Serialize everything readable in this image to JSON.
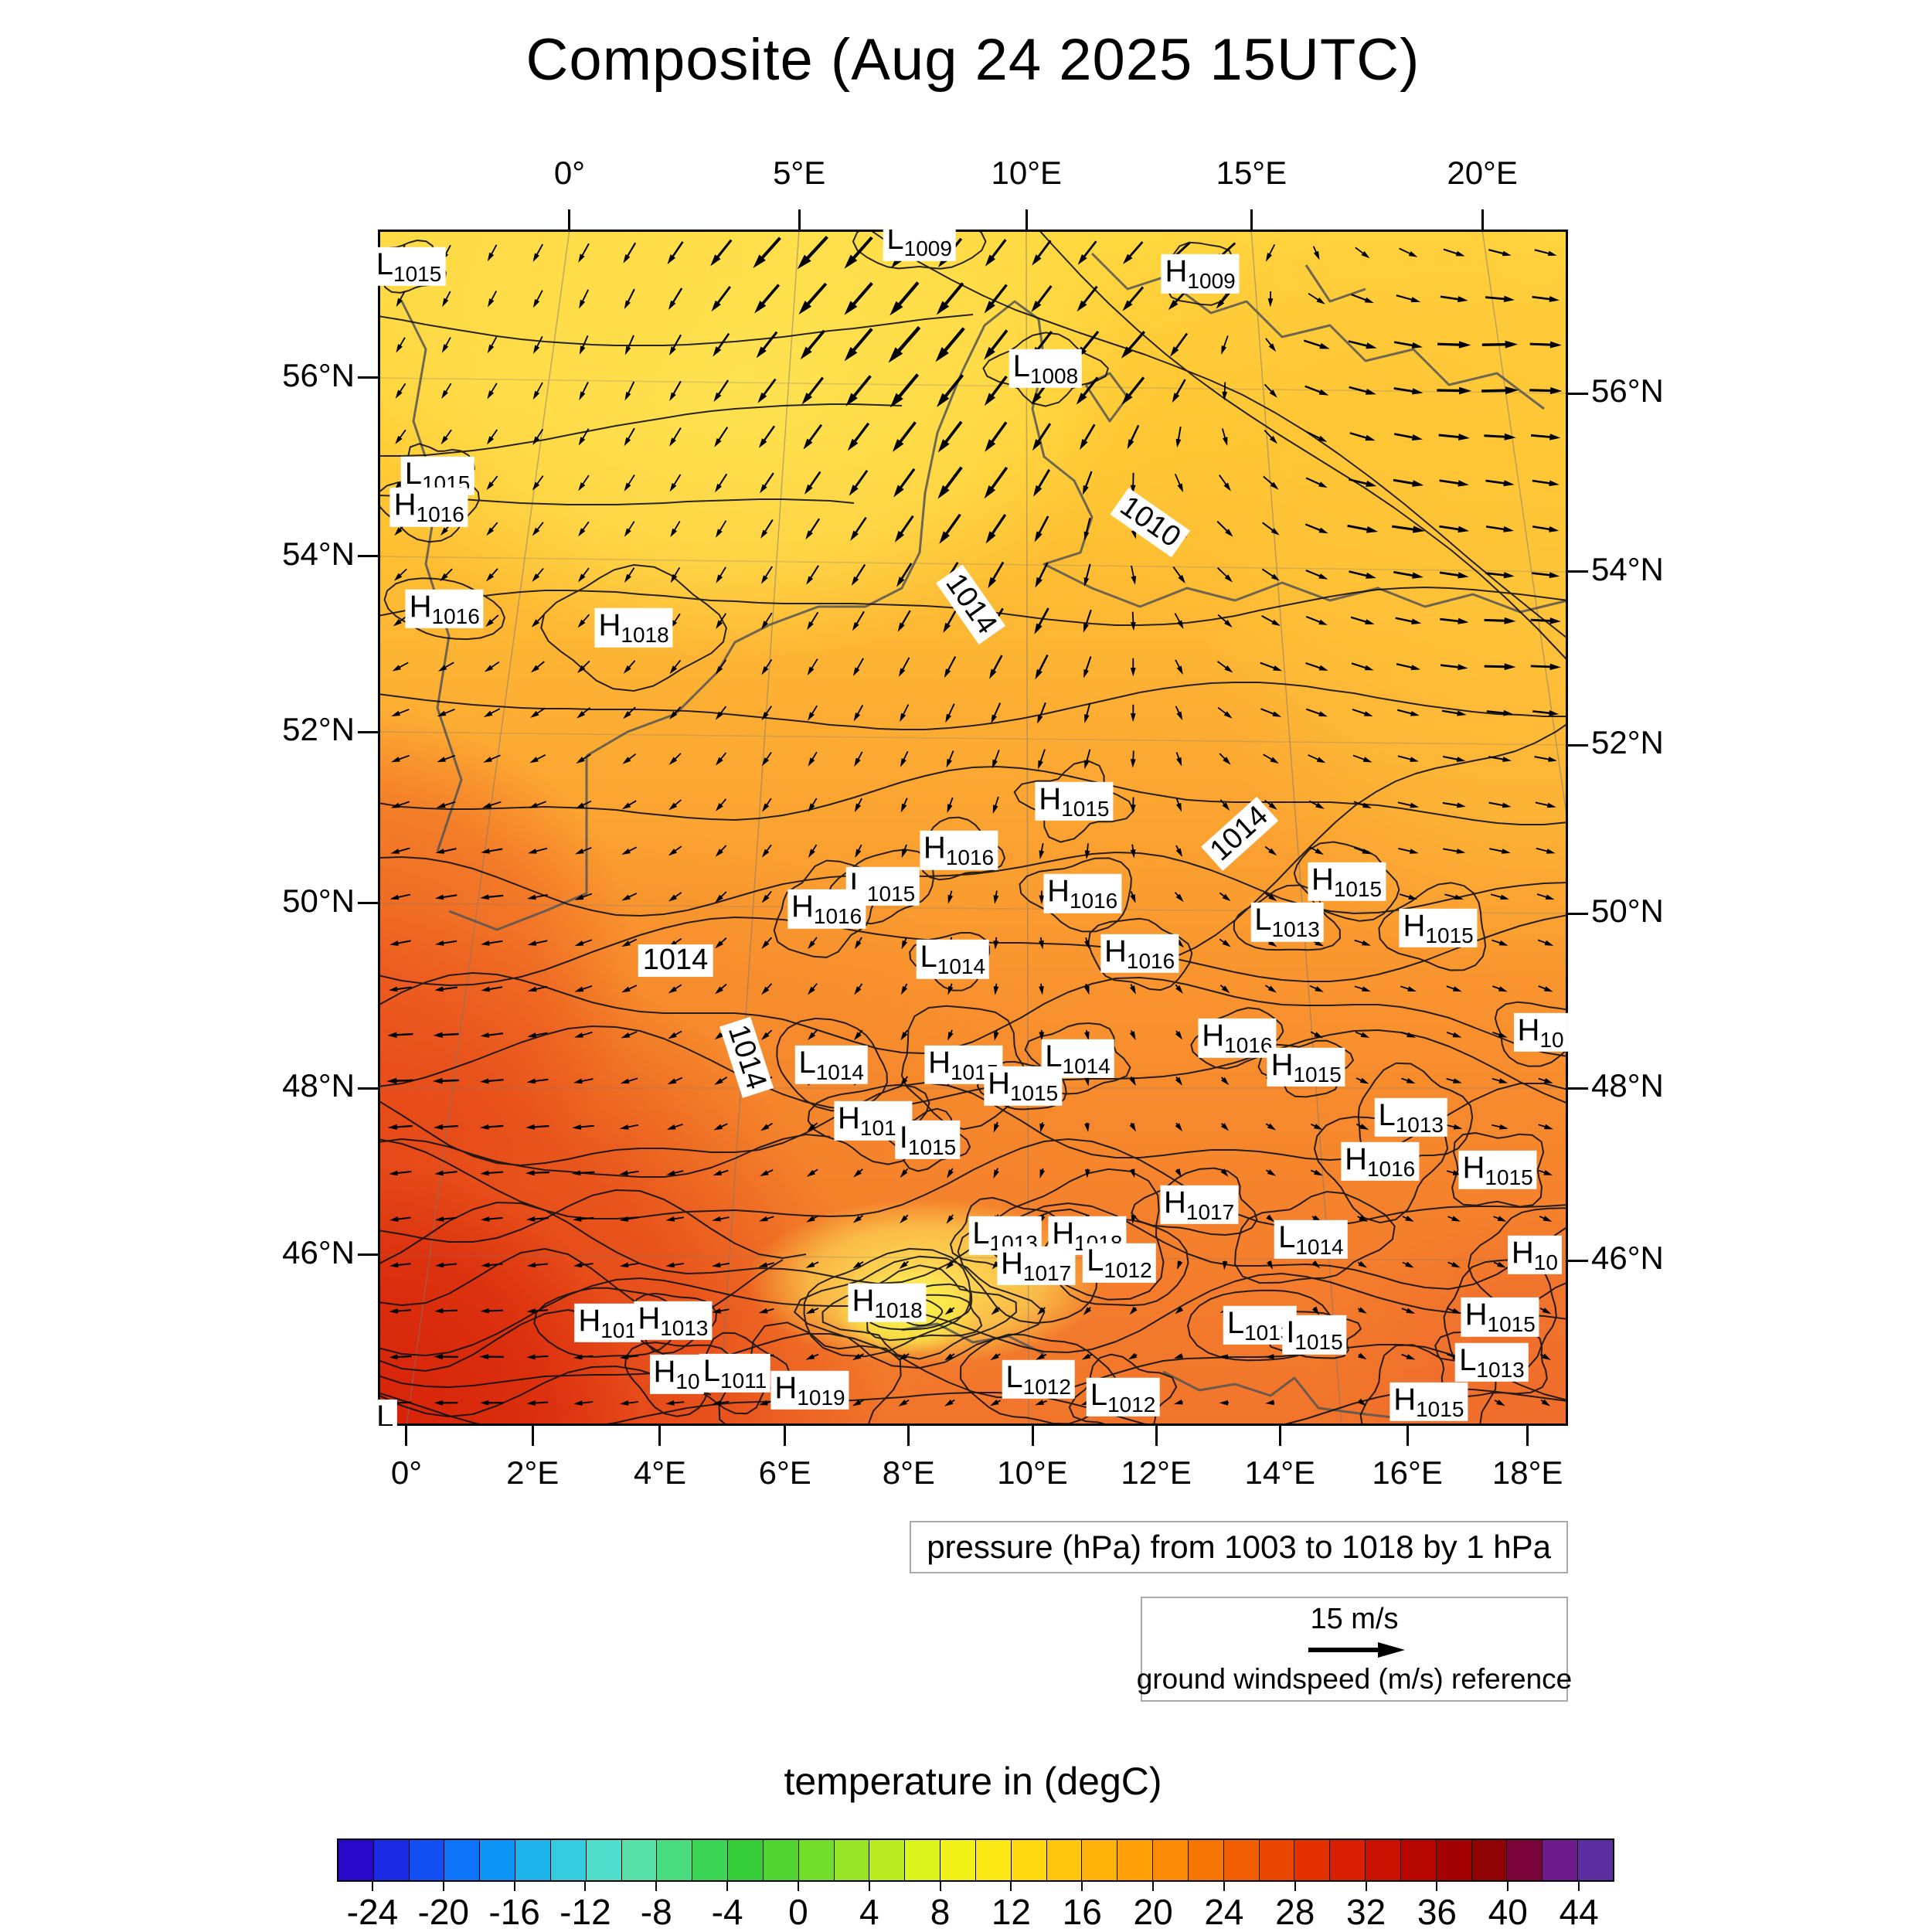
{
  "title": "Composite (Aug 24 2025 15UTC)",
  "caption": "pressure (hPa) from 1003 to 1018 by 1 hPa",
  "wind_legend": {
    "speed_label": "15 m/s",
    "reference_label": "ground windspeed (m/s) reference"
  },
  "colorbar": {
    "title": "temperature in (degC)",
    "min": -26,
    "max": 46,
    "tick_values": [
      -24,
      -20,
      -16,
      -12,
      -8,
      -4,
      0,
      4,
      8,
      12,
      16,
      20,
      24,
      28,
      32,
      36,
      40,
      44
    ],
    "colors": [
      "#2A06C9",
      "#1B2BE3",
      "#134FF2",
      "#0C73F8",
      "#0E94F5",
      "#1FB3EC",
      "#35CCE0",
      "#50DECC",
      "#57E0A8",
      "#4ADB7E",
      "#3BD455",
      "#37CC39",
      "#51D432",
      "#73DD2C",
      "#97E526",
      "#BBEC21",
      "#DCF31C",
      "#F2F219",
      "#FCE814",
      "#FFD810",
      "#FFC60D",
      "#FFB30A",
      "#FFA007",
      "#FC8B05",
      "#F77504",
      "#F25E03",
      "#EC4702",
      "#E33101",
      "#D81F01",
      "#C91001",
      "#B80601",
      "#A40202",
      "#8F0305",
      "#7A043A",
      "#6E1B8C",
      "#5C2D9E"
    ]
  },
  "chart_data": {
    "type": "heatmap",
    "subtype": "weather-composite-map",
    "title": "Composite (Aug 24 2025 15UTC)",
    "fill_variable": "temperature in (degC)",
    "fill_scale": {
      "min": -26,
      "max": 46,
      "tick_step": 4,
      "ticks": [
        -24,
        -20,
        -16,
        -12,
        -8,
        -4,
        0,
        4,
        8,
        12,
        16,
        20,
        24,
        28,
        32,
        36,
        40,
        44
      ]
    },
    "contour_variable": "pressure (hPa)",
    "contour_range": {
      "from": 1003,
      "to": 1018,
      "by": 1
    },
    "vector_variable": "ground windspeed (m/s)",
    "vector_reference": "15 m/s",
    "axes": {
      "top_lon_ticks": [
        {
          "label": "0°",
          "f": 0.161
        },
        {
          "label": "5°E",
          "f": 0.354
        },
        {
          "label": "10°E",
          "f": 0.545
        },
        {
          "label": "15°E",
          "f": 0.734
        },
        {
          "label": "20°E",
          "f": 0.928
        }
      ],
      "bottom_lon_ticks": [
        {
          "label": "0°",
          "f": 0.024
        },
        {
          "label": "2°E",
          "f": 0.13
        },
        {
          "label": "4°E",
          "f": 0.237
        },
        {
          "label": "6°E",
          "f": 0.342
        },
        {
          "label": "8°E",
          "f": 0.446
        },
        {
          "label": "10°E",
          "f": 0.55
        },
        {
          "label": "12°E",
          "f": 0.654
        },
        {
          "label": "14°E",
          "f": 0.758
        },
        {
          "label": "16°E",
          "f": 0.865
        },
        {
          "label": "18°E",
          "f": 0.966
        }
      ],
      "lat_ticks": [
        {
          "label": "56°N",
          "fl": 0.124,
          "fr": 0.137
        },
        {
          "label": "54°N",
          "fl": 0.273,
          "fr": 0.286
        },
        {
          "label": "52°N",
          "fl": 0.42,
          "fr": 0.431
        },
        {
          "label": "50°N",
          "fl": 0.563,
          "fr": 0.572
        },
        {
          "label": "48°N",
          "fl": 0.718,
          "fr": 0.718
        },
        {
          "label": "46°N",
          "fl": 0.857,
          "fr": 0.862
        }
      ]
    },
    "pressure_centers": [
      {
        "t": "L",
        "v": "1015",
        "x": 0.026,
        "y": 0.031
      },
      {
        "t": "L",
        "v": "1009",
        "x": 0.455,
        "y": 0.01
      },
      {
        "t": "H",
        "v": "1009",
        "x": 0.691,
        "y": 0.037
      },
      {
        "t": "L",
        "v": "1008",
        "x": 0.561,
        "y": 0.116
      },
      {
        "t": "L",
        "v": "1015",
        "x": 0.05,
        "y": 0.206
      },
      {
        "t": "H",
        "v": "1016",
        "x": 0.043,
        "y": 0.232
      },
      {
        "t": "H",
        "v": "1016",
        "x": 0.056,
        "y": 0.317
      },
      {
        "t": "H",
        "v": "1018",
        "x": 0.215,
        "y": 0.333
      },
      {
        "t": "H",
        "v": "1015",
        "x": 0.585,
        "y": 0.478
      },
      {
        "t": "H",
        "v": "1016",
        "x": 0.488,
        "y": 0.519
      },
      {
        "t": "L",
        "v": "1015",
        "x": 0.424,
        "y": 0.549
      },
      {
        "t": "H",
        "v": "1016",
        "x": 0.377,
        "y": 0.568
      },
      {
        "t": "H",
        "v": "1016",
        "x": 0.592,
        "y": 0.555
      },
      {
        "t": "H",
        "v": "1015",
        "x": 0.814,
        "y": 0.545
      },
      {
        "t": "L",
        "v": "1013",
        "x": 0.764,
        "y": 0.579
      },
      {
        "t": "H",
        "v": "1015",
        "x": 0.891,
        "y": 0.584
      },
      {
        "t": "L",
        "v": "1014",
        "x": 0.483,
        "y": 0.61
      },
      {
        "t": "H",
        "v": "1016",
        "x": 0.64,
        "y": 0.605
      },
      {
        "t": "H",
        "v": "1016",
        "x": 0.722,
        "y": 0.676
      },
      {
        "t": "H",
        "v": "10",
        "x": 0.977,
        "y": 0.671
      },
      {
        "t": "L",
        "v": "1014",
        "x": 0.381,
        "y": 0.698
      },
      {
        "t": "H",
        "v": "1015",
        "x": 0.492,
        "y": 0.698
      },
      {
        "t": "L",
        "v": "1014",
        "x": 0.588,
        "y": 0.693
      },
      {
        "t": "H",
        "v": "1015",
        "x": 0.542,
        "y": 0.716
      },
      {
        "t": "H",
        "v": "1015",
        "x": 0.78,
        "y": 0.7
      },
      {
        "t": "L",
        "v": "1013",
        "x": 0.868,
        "y": 0.742
      },
      {
        "t": "H",
        "v": "1015",
        "x": 0.416,
        "y": 0.745
      },
      {
        "t": "I",
        "v": "1015",
        "x": 0.462,
        "y": 0.761
      },
      {
        "t": "H",
        "v": "1016",
        "x": 0.842,
        "y": 0.779
      },
      {
        "t": "H",
        "v": "1015",
        "x": 0.941,
        "y": 0.786
      },
      {
        "t": "H",
        "v": "1017",
        "x": 0.69,
        "y": 0.815
      },
      {
        "t": "L",
        "v": "1013",
        "x": 0.527,
        "y": 0.841
      },
      {
        "t": "H",
        "v": "1018",
        "x": 0.596,
        "y": 0.841
      },
      {
        "t": "L",
        "v": "1014",
        "x": 0.784,
        "y": 0.844
      },
      {
        "t": "H",
        "v": "1017",
        "x": 0.553,
        "y": 0.866
      },
      {
        "t": "L",
        "v": "1012",
        "x": 0.623,
        "y": 0.864
      },
      {
        "t": "H",
        "v": "10",
        "x": 0.972,
        "y": 0.857
      },
      {
        "t": "H",
        "v": "101",
        "x": 0.193,
        "y": 0.914
      },
      {
        "t": "H",
        "v": "1013",
        "x": 0.248,
        "y": 0.912
      },
      {
        "t": "H",
        "v": "1018",
        "x": 0.428,
        "y": 0.897
      },
      {
        "t": "L",
        "v": "1013",
        "x": 0.741,
        "y": 0.916
      },
      {
        "t": "I",
        "v": "1015",
        "x": 0.787,
        "y": 0.924
      },
      {
        "t": "H",
        "v": "1015",
        "x": 0.943,
        "y": 0.909
      },
      {
        "t": "H",
        "v": "10",
        "x": 0.251,
        "y": 0.957
      },
      {
        "t": "L",
        "v": "1011",
        "x": 0.3,
        "y": 0.956
      },
      {
        "t": "H",
        "v": "1019",
        "x": 0.363,
        "y": 0.97
      },
      {
        "t": "L",
        "v": "1012",
        "x": 0.555,
        "y": 0.961
      },
      {
        "t": "L",
        "v": "1012",
        "x": 0.626,
        "y": 0.976
      },
      {
        "t": "L",
        "v": "1013",
        "x": 0.936,
        "y": 0.947
      },
      {
        "t": "H",
        "v": "1015",
        "x": 0.883,
        "y": 0.98
      },
      {
        "t": "L",
        "v": "",
        "x": 0.006,
        "y": 0.992
      }
    ],
    "contour_inline_labels": [
      {
        "text": "1010",
        "x": 0.649,
        "y": 0.245,
        "rot": 35
      },
      {
        "text": "1014",
        "x": 0.498,
        "y": 0.313,
        "rot": 55
      },
      {
        "text": "1014",
        "x": 0.724,
        "y": 0.505,
        "rot": -42
      },
      {
        "text": "1014",
        "x": 0.25,
        "y": 0.611,
        "rot": 0
      },
      {
        "text": "1014",
        "x": 0.31,
        "y": 0.692,
        "rot": 72
      }
    ],
    "wind_points": [
      {
        "x": 0.06,
        "y": 0.06,
        "d": 115,
        "s": 4
      },
      {
        "x": 0.2,
        "y": 0.1,
        "d": 105,
        "s": 5
      },
      {
        "x": 0.1,
        "y": 0.25,
        "d": 130,
        "s": 4
      },
      {
        "x": 0.25,
        "y": 0.28,
        "d": 115,
        "s": 4
      },
      {
        "x": 0.36,
        "y": 0.02,
        "d": 135,
        "s": 13
      },
      {
        "x": 0.45,
        "y": 0.1,
        "d": 133,
        "s": 15
      },
      {
        "x": 0.5,
        "y": 0.22,
        "d": 130,
        "s": 13
      },
      {
        "x": 0.55,
        "y": 0.34,
        "d": 125,
        "s": 10
      },
      {
        "x": 0.58,
        "y": 0.47,
        "d": 115,
        "s": 7
      },
      {
        "x": 0.63,
        "y": 0.12,
        "d": 138,
        "s": 13
      },
      {
        "x": 0.7,
        "y": 0.03,
        "d": 150,
        "s": 11
      },
      {
        "x": 0.68,
        "y": 0.25,
        "d": 30,
        "s": 8
      },
      {
        "x": 0.8,
        "y": 0.1,
        "d": 5,
        "s": 11
      },
      {
        "x": 0.93,
        "y": 0.12,
        "d": -8,
        "s": 12
      },
      {
        "x": 0.85,
        "y": 0.25,
        "d": 3,
        "s": 11
      },
      {
        "x": 0.95,
        "y": 0.35,
        "d": -5,
        "s": 10
      },
      {
        "x": 0.76,
        "y": 0.38,
        "d": 8,
        "s": 8
      },
      {
        "x": 0.9,
        "y": 0.5,
        "d": 3,
        "s": 7
      },
      {
        "x": 0.04,
        "y": 0.42,
        "d": 165,
        "s": 5
      },
      {
        "x": 0.1,
        "y": 0.55,
        "d": 182,
        "s": 7
      },
      {
        "x": 0.2,
        "y": 0.52,
        "d": 160,
        "s": 4
      },
      {
        "x": 0.33,
        "y": 0.48,
        "d": 120,
        "s": 4
      },
      {
        "x": 0.45,
        "y": 0.55,
        "d": 100,
        "s": 3
      },
      {
        "x": 0.58,
        "y": 0.6,
        "d": 60,
        "s": 3
      },
      {
        "x": 0.7,
        "y": 0.58,
        "d": 20,
        "s": 4
      },
      {
        "x": 0.83,
        "y": 0.62,
        "d": 10,
        "s": 5
      },
      {
        "x": 0.04,
        "y": 0.7,
        "d": 183,
        "s": 8
      },
      {
        "x": 0.15,
        "y": 0.78,
        "d": 183,
        "s": 7
      },
      {
        "x": 0.28,
        "y": 0.85,
        "d": 178,
        "s": 5
      },
      {
        "x": 0.4,
        "y": 0.72,
        "d": 140,
        "s": 3
      },
      {
        "x": 0.52,
        "y": 0.78,
        "d": 110,
        "s": 3
      },
      {
        "x": 0.65,
        "y": 0.75,
        "d": 40,
        "s": 3
      },
      {
        "x": 0.78,
        "y": 0.78,
        "d": 15,
        "s": 4
      },
      {
        "x": 0.92,
        "y": 0.75,
        "d": 5,
        "s": 5
      },
      {
        "x": 0.08,
        "y": 0.95,
        "d": 185,
        "s": 7
      },
      {
        "x": 0.25,
        "y": 0.96,
        "d": 180,
        "s": 5
      },
      {
        "x": 0.45,
        "y": 0.93,
        "d": 150,
        "s": 3
      },
      {
        "x": 0.58,
        "y": 0.97,
        "d": 175,
        "s": 4
      },
      {
        "x": 0.72,
        "y": 0.95,
        "d": 200,
        "s": 4
      },
      {
        "x": 0.88,
        "y": 0.93,
        "d": 15,
        "s": 5
      },
      {
        "x": 0.6,
        "y": 0.88,
        "d": 120,
        "s": 3
      },
      {
        "x": 0.35,
        "y": 0.62,
        "d": 130,
        "s": 4
      }
    ]
  }
}
